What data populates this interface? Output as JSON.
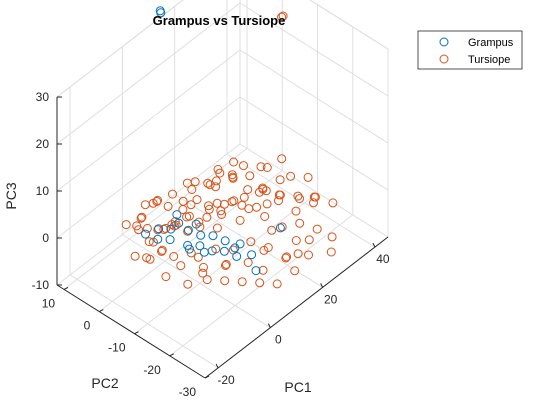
{
  "chart_data": {
    "type": "scatter",
    "title": "Grampus vs Tursiope",
    "xlabel": "PC1",
    "ylabel": "PC2",
    "zlabel": "PC3",
    "xlim": [
      -25,
      45
    ],
    "ylim": [
      -30,
      12
    ],
    "zlim": [
      -10,
      30
    ],
    "xticks": [
      "-20",
      "0",
      "20",
      "40"
    ],
    "yticks": [
      "10",
      "0",
      "-10",
      "-20",
      "-30"
    ],
    "zticks": [
      "-10",
      "0",
      "10",
      "20",
      "30"
    ],
    "grid": true,
    "legend_position": "top-right",
    "series": [
      {
        "name": "Grampus",
        "color": "#0072BD",
        "marker": "open-circle",
        "points": [
          [
            12,
            10,
            33
          ],
          [
            12.2,
            10.3,
            33.2
          ],
          [
            20,
            -18,
            -3
          ],
          [
            8,
            -20,
            -6
          ],
          [
            0,
            -10,
            -2
          ],
          [
            -2,
            -8,
            -2
          ],
          [
            2,
            -12,
            -3
          ],
          [
            4,
            -14,
            -3
          ],
          [
            -4,
            -10,
            -1
          ],
          [
            6,
            -16,
            -4
          ],
          [
            -6,
            -6,
            0
          ],
          [
            8,
            -14,
            -4
          ],
          [
            -8,
            -4,
            0
          ],
          [
            1,
            -6,
            -1
          ],
          [
            3,
            -8,
            -2
          ],
          [
            -3,
            -4,
            0
          ],
          [
            5,
            -10,
            -2
          ],
          [
            7,
            -12,
            -3
          ],
          [
            10,
            -14,
            -4
          ],
          [
            0,
            -4,
            0
          ],
          [
            -5,
            -2,
            0
          ],
          [
            2,
            -2,
            0
          ],
          [
            -10,
            -2,
            1
          ],
          [
            9,
            -18,
            -4
          ],
          [
            -1,
            -12,
            -2
          ],
          [
            4,
            -6,
            -1
          ]
        ]
      },
      {
        "name": "Tursiope",
        "color": "#D95319",
        "marker": "open-circle",
        "points": [
          [
            38,
            -5,
            28
          ],
          [
            38.3,
            -5.2,
            28.2
          ],
          [
            -15,
            -6,
            0
          ],
          [
            -12,
            -8,
            1
          ],
          [
            -10,
            -10,
            0
          ],
          [
            -8,
            -4,
            2
          ],
          [
            -6,
            -12,
            0
          ],
          [
            -4,
            -6,
            3
          ],
          [
            -2,
            -8,
            1
          ],
          [
            0,
            -10,
            2
          ],
          [
            2,
            -6,
            4
          ],
          [
            4,
            -12,
            1
          ],
          [
            6,
            -8,
            3
          ],
          [
            8,
            -10,
            2
          ],
          [
            10,
            -14,
            1
          ],
          [
            12,
            -6,
            0
          ],
          [
            14,
            -18,
            2
          ],
          [
            16,
            -12,
            0
          ],
          [
            18,
            -20,
            -1
          ],
          [
            20,
            -14,
            3
          ],
          [
            22,
            -16,
            1
          ],
          [
            24,
            -10,
            0
          ],
          [
            26,
            -18,
            -2
          ],
          [
            28,
            -12,
            1
          ],
          [
            30,
            -20,
            -1
          ],
          [
            -14,
            -2,
            -2
          ],
          [
            -11,
            -4,
            -3
          ],
          [
            -9,
            -6,
            -1
          ],
          [
            -7,
            -2,
            -2
          ],
          [
            -5,
            -4,
            1
          ],
          [
            -3,
            -2,
            -1
          ],
          [
            -1,
            -4,
            0
          ],
          [
            1,
            -2,
            -2
          ],
          [
            3,
            -4,
            0
          ],
          [
            5,
            -6,
            -1
          ],
          [
            7,
            -4,
            2
          ],
          [
            9,
            -6,
            0
          ],
          [
            11,
            -8,
            -1
          ],
          [
            13,
            -10,
            2
          ],
          [
            15,
            -8,
            0
          ],
          [
            17,
            -10,
            1
          ],
          [
            19,
            -12,
            -1
          ],
          [
            21,
            -8,
            0
          ],
          [
            23,
            -12,
            -2
          ],
          [
            25,
            -14,
            0
          ],
          [
            -13,
            -10,
            -3
          ],
          [
            -10,
            -14,
            -4
          ],
          [
            -7,
            -16,
            -2
          ],
          [
            -4,
            -14,
            -3
          ],
          [
            -1,
            -18,
            -2
          ],
          [
            2,
            -16,
            -4
          ],
          [
            5,
            -20,
            -3
          ],
          [
            8,
            -22,
            -5
          ],
          [
            11,
            -20,
            -3
          ],
          [
            14,
            -24,
            -4
          ],
          [
            17,
            -22,
            -6
          ],
          [
            20,
            -26,
            -5
          ],
          [
            23,
            -24,
            -4
          ],
          [
            26,
            -28,
            -6
          ],
          [
            29,
            -26,
            -5
          ],
          [
            -12,
            2,
            2
          ],
          [
            -9,
            0,
            3
          ],
          [
            -6,
            2,
            1
          ],
          [
            -3,
            0,
            4
          ],
          [
            0,
            2,
            2
          ],
          [
            3,
            0,
            3
          ],
          [
            6,
            -2,
            5
          ],
          [
            9,
            -2,
            4
          ],
          [
            12,
            -4,
            3
          ],
          [
            15,
            -4,
            5
          ],
          [
            18,
            -6,
            3
          ],
          [
            21,
            -4,
            4
          ],
          [
            -8,
            -8,
            5
          ],
          [
            -4,
            -10,
            6
          ],
          [
            0,
            -12,
            5
          ],
          [
            4,
            -14,
            7
          ],
          [
            8,
            -16,
            6
          ],
          [
            12,
            -18,
            8
          ],
          [
            16,
            -16,
            6
          ],
          [
            10,
            -12,
            9
          ],
          [
            14,
            -12,
            10
          ],
          [
            6,
            -10,
            8
          ],
          [
            18,
            -14,
            9
          ],
          [
            -10,
            -12,
            -1
          ],
          [
            -6,
            -14,
            0
          ],
          [
            -2,
            -16,
            1
          ],
          [
            2,
            -18,
            0
          ],
          [
            6,
            -20,
            1
          ],
          [
            10,
            -22,
            -1
          ],
          [
            14,
            -20,
            0
          ],
          [
            18,
            -24,
            -2
          ],
          [
            22,
            -22,
            -1
          ],
          [
            26,
            -24,
            -3
          ],
          [
            30,
            -16,
            -2
          ],
          [
            32,
            -12,
            0
          ],
          [
            34,
            -8,
            1
          ],
          [
            36,
            -14,
            -1
          ],
          [
            33,
            -18,
            -2
          ],
          [
            -14,
            -6,
            3
          ],
          [
            -12,
            -4,
            4
          ],
          [
            -10,
            0,
            1
          ],
          [
            -8,
            2,
            0
          ],
          [
            -2,
            4,
            1
          ],
          [
            1,
            4,
            0
          ],
          [
            4,
            2,
            -1
          ],
          [
            7,
            0,
            -2
          ],
          [
            3,
            -10,
            10
          ],
          [
            7,
            -14,
            12
          ],
          [
            11,
            -16,
            11
          ],
          [
            15,
            -18,
            12
          ],
          [
            9,
            -8,
            7
          ],
          [
            13,
            -6,
            6
          ],
          [
            -1,
            -6,
            6
          ],
          [
            5,
            -4,
            5
          ],
          [
            20,
            -18,
            4
          ],
          [
            24,
            -20,
            3
          ],
          [
            28,
            -22,
            2
          ],
          [
            32,
            -24,
            0
          ],
          [
            16,
            -26,
            -3
          ],
          [
            12,
            -28,
            -4
          ],
          [
            8,
            -26,
            -6
          ],
          [
            4,
            -24,
            -5
          ],
          [
            0,
            -22,
            -4
          ],
          [
            -4,
            -20,
            -3
          ],
          [
            -8,
            -18,
            -2
          ]
        ]
      }
    ]
  }
}
